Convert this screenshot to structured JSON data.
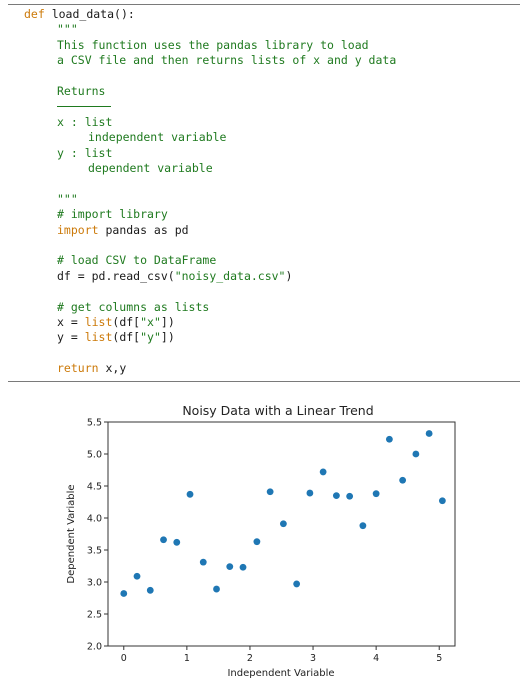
{
  "code": {
    "lines": [
      {
        "segments": [
          {
            "t": "def",
            "c": "kw"
          },
          {
            "t": " load_data():",
            "c": ""
          }
        ],
        "indent": 0
      },
      {
        "segments": [
          {
            "t": "\"\"\"",
            "c": "doc"
          }
        ],
        "indent": 1
      },
      {
        "segments": [
          {
            "t": "This function uses the pandas library to load",
            "c": "doc"
          }
        ],
        "indent": 1
      },
      {
        "segments": [
          {
            "t": "a CSV file and then returns lists of x and y data",
            "c": "doc"
          }
        ],
        "indent": 1
      },
      {
        "segments": [],
        "indent": 0
      },
      {
        "segments": [
          {
            "t": "Returns",
            "c": "doc"
          }
        ],
        "indent": 1
      },
      {
        "segments": [],
        "indent": 0
      },
      {
        "segments": [
          {
            "t": "x : list",
            "c": "doc"
          }
        ],
        "indent": 1
      },
      {
        "segments": [
          {
            "t": "independent variable",
            "c": "doc"
          }
        ],
        "indent": 2
      },
      {
        "segments": [
          {
            "t": "y : list",
            "c": "doc"
          }
        ],
        "indent": 1
      },
      {
        "segments": [
          {
            "t": "dependent variable",
            "c": "doc"
          }
        ],
        "indent": 2
      },
      {
        "segments": [],
        "indent": 0
      },
      {
        "segments": [
          {
            "t": "\"\"\"",
            "c": "doc"
          }
        ],
        "indent": 1
      },
      {
        "segments": [
          {
            "t": "# import library",
            "c": "com"
          }
        ],
        "indent": 1
      },
      {
        "segments": [
          {
            "t": "import",
            "c": "kw"
          },
          {
            "t": " pandas as pd",
            "c": ""
          }
        ],
        "indent": 1
      },
      {
        "segments": [],
        "indent": 0
      },
      {
        "segments": [
          {
            "t": "# load CSV to DataFrame",
            "c": "com"
          }
        ],
        "indent": 1
      },
      {
        "segments": [
          {
            "t": "df = pd.read_csv(",
            "c": ""
          },
          {
            "t": "\"noisy_data.csv\"",
            "c": "str"
          },
          {
            "t": ")",
            "c": ""
          }
        ],
        "indent": 1
      },
      {
        "segments": [],
        "indent": 0
      },
      {
        "segments": [
          {
            "t": "# get columns as lists",
            "c": "com"
          }
        ],
        "indent": 1
      },
      {
        "segments": [
          {
            "t": "x = ",
            "c": ""
          },
          {
            "t": "list",
            "c": "kw"
          },
          {
            "t": "(df[",
            "c": ""
          },
          {
            "t": "\"x\"",
            "c": "str"
          },
          {
            "t": "])",
            "c": ""
          }
        ],
        "indent": 1
      },
      {
        "segments": [
          {
            "t": "y = ",
            "c": ""
          },
          {
            "t": "list",
            "c": "kw"
          },
          {
            "t": "(df[",
            "c": ""
          },
          {
            "t": "\"y\"",
            "c": "str"
          },
          {
            "t": "])",
            "c": ""
          }
        ],
        "indent": 1
      },
      {
        "segments": [],
        "indent": 0
      },
      {
        "segments": [
          {
            "t": "return",
            "c": "kw"
          },
          {
            "t": " x,y",
            "c": ""
          }
        ],
        "indent": 1
      }
    ]
  },
  "colors": {
    "keyword": "#cc7a0a",
    "docstring": "#1f7a1f",
    "marker": "#1f77b4"
  },
  "chart_data": {
    "type": "scatter",
    "title": "Noisy Data with a Linear Trend",
    "xlabel": "Independent Variable",
    "ylabel": "Dependent Variable",
    "xlim": [
      -0.25,
      5.25
    ],
    "ylim": [
      2.0,
      5.5
    ],
    "xticks": [
      0,
      1,
      2,
      3,
      4,
      5
    ],
    "yticks": [
      2.0,
      2.5,
      3.0,
      3.5,
      4.0,
      4.5,
      5.0,
      5.5
    ],
    "grid": false,
    "x": [
      0.0,
      0.21,
      0.42,
      0.63,
      0.84,
      1.05,
      1.26,
      1.47,
      1.68,
      1.89,
      2.11,
      2.32,
      2.53,
      2.74,
      2.95,
      3.16,
      3.37,
      3.58,
      3.79,
      4.0,
      4.21,
      4.42,
      4.63,
      4.84,
      5.05
    ],
    "y": [
      2.82,
      3.09,
      2.87,
      3.66,
      3.62,
      4.37,
      3.31,
      2.89,
      3.24,
      3.23,
      3.63,
      4.41,
      3.91,
      2.97,
      4.39,
      4.72,
      4.35,
      4.34,
      3.88,
      4.38,
      5.23,
      4.59,
      5.0,
      5.32,
      4.27
    ]
  }
}
